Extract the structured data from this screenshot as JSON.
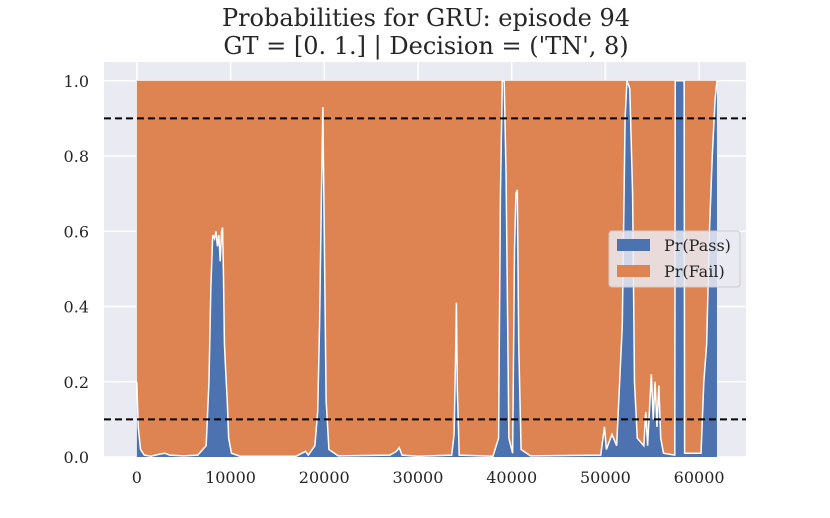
{
  "chart_data": {
    "type": "area",
    "title_line1": "Probabilities for GRU: episode 94",
    "title_line2": "GT = [0. 1.] | Decision = ('TN', 8)",
    "xlabel": "",
    "ylabel": "",
    "xlim": [
      -3500,
      65000
    ],
    "ylim": [
      0,
      1.05
    ],
    "x_ticks": [
      0,
      10000,
      20000,
      30000,
      40000,
      50000,
      60000
    ],
    "x_tick_labels": [
      "0",
      "10000",
      "20000",
      "30000",
      "40000",
      "50000",
      "60000"
    ],
    "y_ticks": [
      0.0,
      0.2,
      0.4,
      0.6,
      0.8,
      1.0
    ],
    "y_tick_labels": [
      "0.0",
      "0.2",
      "0.4",
      "0.6",
      "0.8",
      "1.0"
    ],
    "grid": true,
    "legend_position": "right",
    "stacked": true,
    "x_range": [
      0,
      61900
    ],
    "thresholds": [
      0.9,
      0.1
    ],
    "series": [
      {
        "name": "Pr(Pass)",
        "color": "#4c72b0",
        "points": [
          [
            0,
            0.2
          ],
          [
            150,
            0.08
          ],
          [
            400,
            0.02
          ],
          [
            800,
            0.005
          ],
          [
            1500,
            0.002
          ],
          [
            2500,
            0.008
          ],
          [
            3000,
            0.01
          ],
          [
            3500,
            0.005
          ],
          [
            5000,
            0.003
          ],
          [
            6500,
            0.005
          ],
          [
            7400,
            0.03
          ],
          [
            7700,
            0.2
          ],
          [
            7900,
            0.45
          ],
          [
            8100,
            0.59
          ],
          [
            8300,
            0.58
          ],
          [
            8450,
            0.6
          ],
          [
            8600,
            0.56
          ],
          [
            8750,
            0.59
          ],
          [
            8900,
            0.52
          ],
          [
            9050,
            0.6
          ],
          [
            9150,
            0.61
          ],
          [
            9250,
            0.48
          ],
          [
            9350,
            0.3
          ],
          [
            9500,
            0.22
          ],
          [
            9650,
            0.15
          ],
          [
            9800,
            0.05
          ],
          [
            10100,
            0.01
          ],
          [
            11000,
            0.002
          ],
          [
            17000,
            0.002
          ],
          [
            18000,
            0.015
          ],
          [
            18300,
            0.005
          ],
          [
            19000,
            0.03
          ],
          [
            19300,
            0.12
          ],
          [
            19500,
            0.35
          ],
          [
            19700,
            0.7
          ],
          [
            19850,
            0.93
          ],
          [
            20000,
            0.6
          ],
          [
            20200,
            0.15
          ],
          [
            20500,
            0.02
          ],
          [
            21500,
            0.003
          ],
          [
            27000,
            0.005
          ],
          [
            27700,
            0.015
          ],
          [
            28000,
            0.025
          ],
          [
            28300,
            0.005
          ],
          [
            30000,
            0.002
          ],
          [
            33600,
            0.005
          ],
          [
            33850,
            0.06
          ],
          [
            34000,
            0.25
          ],
          [
            34100,
            0.41
          ],
          [
            34200,
            0.18
          ],
          [
            34400,
            0.005
          ],
          [
            38000,
            0.002
          ],
          [
            38600,
            0.05
          ],
          [
            38800,
            0.7
          ],
          [
            39000,
            1.0
          ],
          [
            39200,
            1.0
          ],
          [
            39400,
            0.75
          ],
          [
            39700,
            0.05
          ],
          [
            40100,
            0.01
          ],
          [
            40300,
            0.55
          ],
          [
            40450,
            0.7
          ],
          [
            40600,
            0.71
          ],
          [
            40750,
            0.3
          ],
          [
            41000,
            0.02
          ],
          [
            42000,
            0.003
          ],
          [
            49500,
            0.005
          ],
          [
            49900,
            0.08
          ],
          [
            50100,
            0.02
          ],
          [
            50700,
            0.06
          ],
          [
            51200,
            0.03
          ],
          [
            51800,
            0.35
          ],
          [
            52100,
            0.9
          ],
          [
            52300,
            1.0
          ],
          [
            52600,
            0.98
          ],
          [
            52900,
            0.7
          ],
          [
            53100,
            0.2
          ],
          [
            53400,
            0.05
          ],
          [
            54100,
            0.03
          ],
          [
            54300,
            0.12
          ],
          [
            54500,
            0.03
          ],
          [
            54900,
            0.22
          ],
          [
            55100,
            0.1
          ],
          [
            55300,
            0.2
          ],
          [
            55500,
            0.08
          ],
          [
            55700,
            0.19
          ],
          [
            55900,
            0.05
          ],
          [
            56200,
            0.01
          ],
          [
            57400,
            0.005
          ],
          [
            57450,
            1.0
          ],
          [
            58400,
            1.0
          ],
          [
            58450,
            0.01
          ],
          [
            60200,
            0.01
          ],
          [
            60500,
            0.2
          ],
          [
            60800,
            0.3
          ],
          [
            61100,
            0.6
          ],
          [
            61400,
            0.8
          ],
          [
            61700,
            0.95
          ],
          [
            61900,
            1.0
          ]
        ]
      },
      {
        "name": "Pr(Fail)",
        "color": "#dd8452",
        "note_complement": "Pr(Fail) = 1 - Pr(Pass), stacked on top"
      }
    ]
  }
}
